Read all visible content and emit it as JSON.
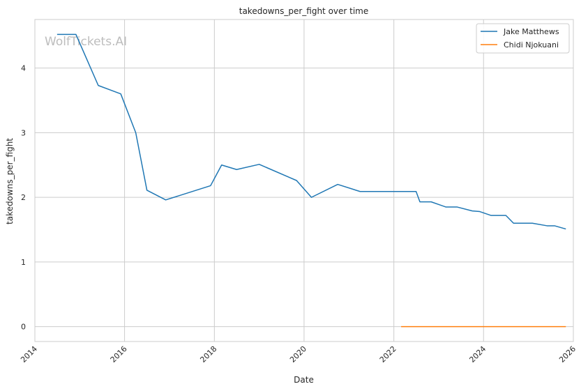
{
  "chart_data": {
    "type": "line",
    "title": "takedowns_per_fight over time",
    "xlabel": "Date",
    "ylabel": "takedowns_per_fight",
    "watermark": "WolfTickets.AI",
    "xlim": [
      "2014-01-01",
      "2026-01-01"
    ],
    "ylim": [
      -0.23,
      4.75
    ],
    "x_ticks": [
      {
        "value": "2014-01-01",
        "label": "2014"
      },
      {
        "value": "2016-01-01",
        "label": "2016"
      },
      {
        "value": "2018-01-01",
        "label": "2018"
      },
      {
        "value": "2020-01-01",
        "label": "2020"
      },
      {
        "value": "2022-01-01",
        "label": "2022"
      },
      {
        "value": "2024-01-01",
        "label": "2024"
      },
      {
        "value": "2026-01-01",
        "label": "2026"
      }
    ],
    "y_ticks": [
      {
        "value": 0,
        "label": "0"
      },
      {
        "value": 1,
        "label": "1"
      },
      {
        "value": 2,
        "label": "2"
      },
      {
        "value": 3,
        "label": "3"
      },
      {
        "value": 4,
        "label": "4"
      }
    ],
    "grid": true,
    "legend_position": "top-right",
    "series": [
      {
        "name": "Jake Matthews",
        "color": "#1f77b4",
        "points": [
          {
            "x": "2014-07-01",
            "y": 4.52
          },
          {
            "x": "2014-12-01",
            "y": 4.52
          },
          {
            "x": "2015-06-01",
            "y": 3.73
          },
          {
            "x": "2015-12-01",
            "y": 3.6
          },
          {
            "x": "2016-04-01",
            "y": 3.0
          },
          {
            "x": "2016-07-01",
            "y": 2.11
          },
          {
            "x": "2016-12-01",
            "y": 1.96
          },
          {
            "x": "2017-12-01",
            "y": 2.18
          },
          {
            "x": "2018-03-01",
            "y": 2.5
          },
          {
            "x": "2018-07-01",
            "y": 2.43
          },
          {
            "x": "2019-01-01",
            "y": 2.51
          },
          {
            "x": "2019-11-01",
            "y": 2.26
          },
          {
            "x": "2020-03-01",
            "y": 2.0
          },
          {
            "x": "2020-10-01",
            "y": 2.2
          },
          {
            "x": "2021-04-01",
            "y": 2.09
          },
          {
            "x": "2022-07-01",
            "y": 2.09
          },
          {
            "x": "2022-08-01",
            "y": 1.93
          },
          {
            "x": "2022-11-01",
            "y": 1.93
          },
          {
            "x": "2023-03-01",
            "y": 1.85
          },
          {
            "x": "2023-06-01",
            "y": 1.85
          },
          {
            "x": "2023-10-01",
            "y": 1.79
          },
          {
            "x": "2023-12-01",
            "y": 1.78
          },
          {
            "x": "2024-03-01",
            "y": 1.72
          },
          {
            "x": "2024-07-01",
            "y": 1.72
          },
          {
            "x": "2024-09-01",
            "y": 1.6
          },
          {
            "x": "2025-02-01",
            "y": 1.6
          },
          {
            "x": "2025-06-01",
            "y": 1.56
          },
          {
            "x": "2025-08-01",
            "y": 1.56
          },
          {
            "x": "2025-11-01",
            "y": 1.51
          }
        ]
      },
      {
        "name": "Chidi Njokuani",
        "color": "#ff7f0e",
        "points": [
          {
            "x": "2022-03-01",
            "y": 0
          },
          {
            "x": "2025-11-01",
            "y": 0
          }
        ]
      }
    ]
  }
}
